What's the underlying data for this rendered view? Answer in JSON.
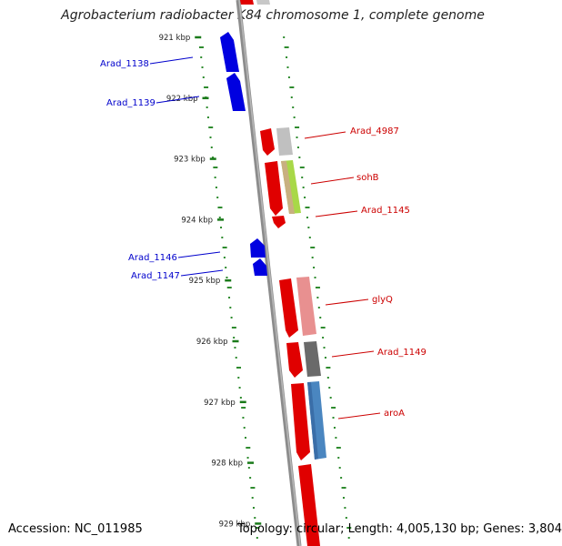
{
  "title": "Agrobacterium radiobacter K84 chromosome 1, complete genome",
  "footer": {
    "accession": "Accession: NC_011985",
    "summary": "Topology: circular; Length: 4,005,130 bp; Genes: 3,804"
  },
  "colors": {
    "backbone": "#8c8c8c",
    "scale_tick": "#1a7a1a",
    "gc_dots": "#2e8b2e",
    "forward_cds": "#e00000",
    "reverse_cds": "#0000e0",
    "forward_label": "#cc0000",
    "reverse_label": "#0000cc"
  },
  "scale_ticks": [
    "921 kbp",
    "922 kbp",
    "923 kbp",
    "924 kbp",
    "925 kbp",
    "926 kbp",
    "927 kbp",
    "928 kbp",
    "929 kbp"
  ],
  "reverse_genes": [
    {
      "id": "Arad_1138"
    },
    {
      "id": "Arad_1139"
    },
    {
      "id": "Arad_1146"
    },
    {
      "id": "Arad_1147"
    }
  ],
  "forward_genes": [
    {
      "id": "Arad_4987",
      "cog_color": "#c0c0c0"
    },
    {
      "id": "sohB",
      "cog_color": "#a8d848"
    },
    {
      "id": "Arad_1145",
      "cog_color": "#e00000"
    },
    {
      "id": "glyQ",
      "cog_color": "#e89090"
    },
    {
      "id": "Arad_1149",
      "cog_color": "#6a6a6a"
    },
    {
      "id": "aroA",
      "cog_color": "#4a86c0"
    }
  ]
}
